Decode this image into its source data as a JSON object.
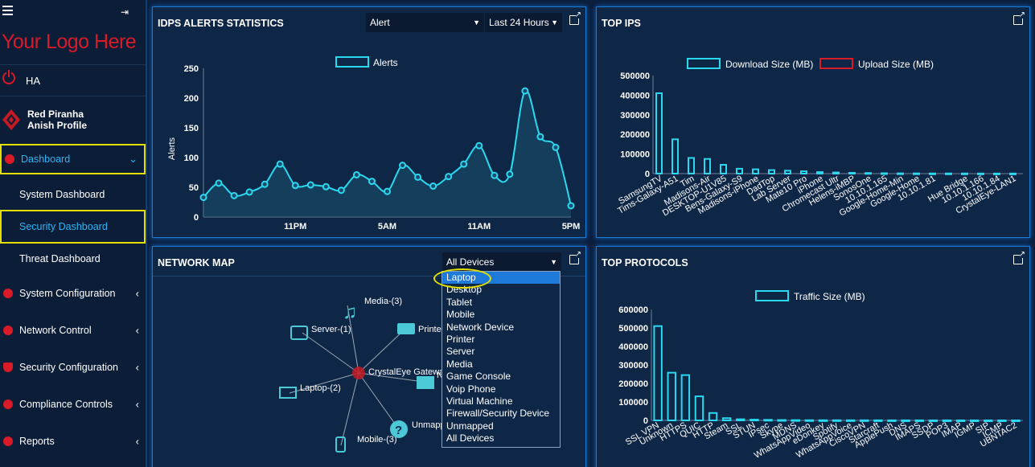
{
  "sidebar": {
    "logo_text": "Your Logo Here",
    "ha_label": "HA",
    "profile_name": "Red Piranha",
    "profile_sub": "Anish Profile",
    "items": [
      {
        "label": "Dashboard",
        "icon": "dashboard-icon"
      },
      {
        "label": "System Dashboard"
      },
      {
        "label": "Security Dashboard"
      },
      {
        "label": "Threat Dashboard"
      },
      {
        "label": "System Configuration",
        "icon": "gear-icon"
      },
      {
        "label": "Network Control",
        "icon": "globe-icon"
      },
      {
        "label": "Security Configuration",
        "icon": "shield-icon"
      },
      {
        "label": "Compliance Controls",
        "icon": "compliance-icon"
      },
      {
        "label": "Reports",
        "icon": "reports-icon"
      }
    ]
  },
  "idps": {
    "title": "IDPS ALERTS STATISTICS",
    "select_type": "Alert",
    "select_range": "Last 24 Hours"
  },
  "top_ips": {
    "title": "TOP IPS"
  },
  "network_map": {
    "title": "NETWORK MAP",
    "select_value": "All Devices",
    "nodes": {
      "center": "CrystalEye Gateway",
      "media": "Media-(3)",
      "server": "Server-(1)",
      "printer": "Printer",
      "laptop": "Laptop-(2)",
      "mobile": "Mobile-(3)",
      "unmapped": "Unmapp",
      "network": "N"
    },
    "dropdown_options": [
      "Laptop",
      "Desktop",
      "Tablet",
      "Mobile",
      "Network Device",
      "Printer",
      "Server",
      "Media",
      "Game Console",
      "Voip Phone",
      "Virtual Machine",
      "Firewall/Security Device",
      "Unmapped",
      "All Devices"
    ]
  },
  "top_protocols": {
    "title": "TOP PROTOCOLS"
  },
  "colors": {
    "accent": "#1e90ff",
    "cyan": "#2ad8f0",
    "red": "#d81b26",
    "highlight": "#e3e000"
  },
  "chart_data": [
    {
      "type": "line",
      "legend": [
        "Alerts"
      ],
      "ylabel": "Alerts",
      "ylim": [
        0,
        250
      ],
      "yticks": [
        0,
        50,
        100,
        150,
        200,
        250
      ],
      "xtick_labels": [
        "11PM",
        "5AM",
        "11AM",
        "5PM"
      ],
      "series": [
        {
          "name": "Alerts",
          "values": [
            33,
            57,
            36,
            42,
            55,
            89,
            53,
            54,
            51,
            45,
            71,
            60,
            43,
            87,
            67,
            52,
            68,
            89,
            120,
            70,
            72,
            212,
            135,
            117,
            19
          ]
        }
      ]
    },
    {
      "type": "bar",
      "legend": [
        "Download Size (MB)",
        "Upload Size (MB)"
      ],
      "ylim": [
        0,
        500000
      ],
      "yticks": [
        0,
        100000,
        200000,
        300000,
        400000,
        500000
      ],
      "categories": [
        "SamsungTV",
        "Tims-Galaxy-A51",
        "Tim",
        "Madisons-Air",
        "DESKTOP-U1V85",
        "Bens-Galaxy-S9",
        "Madisons-iPhone",
        "DadTop",
        "Lab Server",
        "Mate10 Pro",
        "iPhone",
        "Chromecast Ultr",
        "Helens-iMBP",
        "SonosOne",
        "10.10.1.165",
        "Google-Home-Min",
        "Google-Home",
        "10.10.1.81",
        "",
        "Hue Bridge",
        "10.10.1.166",
        "10.10.1.84",
        "CrystalEye-LAN1"
      ],
      "series": [
        {
          "name": "Download Size (MB)",
          "values": [
            410000,
            175000,
            80000,
            75000,
            45000,
            25000,
            22000,
            18000,
            15000,
            12000,
            8000,
            6000,
            4000,
            3000,
            2000,
            1500,
            1200,
            1000,
            900,
            800,
            700,
            600,
            500
          ]
        },
        {
          "name": "Upload Size (MB)",
          "values": [
            1000,
            800,
            500,
            400,
            300,
            200,
            200,
            100,
            100,
            100,
            50,
            50,
            50,
            50,
            50,
            50,
            50,
            50,
            50,
            50,
            50,
            50,
            50
          ]
        }
      ]
    },
    {
      "type": "bar",
      "legend": [
        "Traffic Size (MB)"
      ],
      "ylim": [
        0,
        600000
      ],
      "yticks": [
        0,
        100000,
        200000,
        300000,
        400000,
        500000,
        600000
      ],
      "categories": [
        "SSL VPN",
        "Unknown",
        "HTTPS",
        "QUIC",
        "HTTP",
        "Steam",
        "SSL",
        "STUN",
        "IPsec",
        "Skype",
        "MDNS",
        "WhatsAppVideo",
        "eDonkey",
        "Spotify",
        "WhatsAppVoice",
        "CiscoVPN",
        "Starcraft",
        "ApplePush",
        "DNS",
        "IMAPS",
        "SSDP",
        "POP3",
        "IMAP",
        "IGMP",
        "SIP",
        "ICMP",
        "UBNTAC2"
      ],
      "series": [
        {
          "name": "Traffic Size (MB)",
          "values": [
            510000,
            258000,
            245000,
            130000,
            40000,
            12000,
            6000,
            4000,
            3000,
            2000,
            1500,
            1000,
            900,
            800,
            700,
            600,
            500,
            400,
            300,
            300,
            200,
            200,
            100,
            100,
            100,
            100,
            100
          ]
        }
      ]
    }
  ]
}
